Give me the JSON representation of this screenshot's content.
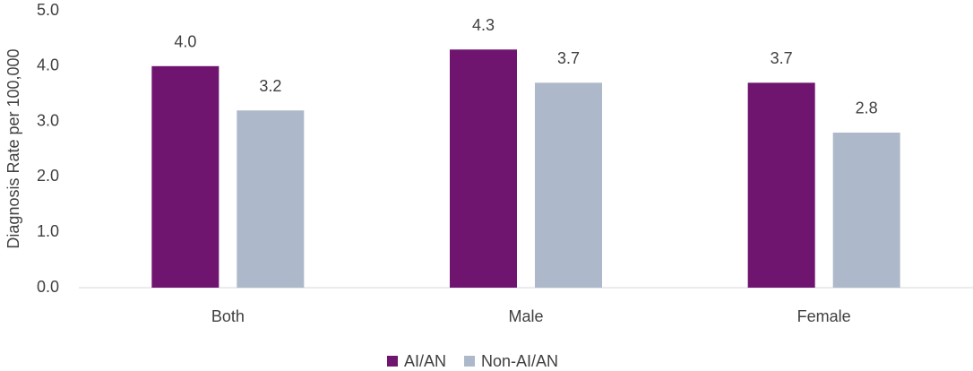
{
  "chart_data": {
    "type": "bar",
    "y_label": "Diagnosis Rate per 100,000",
    "categories": [
      "Both",
      "Male",
      "Female"
    ],
    "series": [
      {
        "name": "AI/AN",
        "color": "#6f1570",
        "values": [
          4.0,
          4.3,
          3.7
        ],
        "value_labels": [
          "4.0",
          "4.3",
          "3.7"
        ]
      },
      {
        "name": "Non-AI/AN",
        "color": "#adb9ca",
        "values": [
          3.2,
          3.7,
          2.8
        ],
        "value_labels": [
          "3.2",
          "3.7",
          "2.8"
        ]
      }
    ],
    "ylim": [
      0,
      5
    ],
    "yticks": [
      {
        "value": 0,
        "label": "0.0"
      },
      {
        "value": 1,
        "label": "1.0"
      },
      {
        "value": 2,
        "label": "2.0"
      },
      {
        "value": 3,
        "label": "3.0"
      },
      {
        "value": 4,
        "label": "4.0"
      },
      {
        "value": 5,
        "label": "5.0"
      }
    ],
    "grid": false,
    "legend": "bottom"
  }
}
